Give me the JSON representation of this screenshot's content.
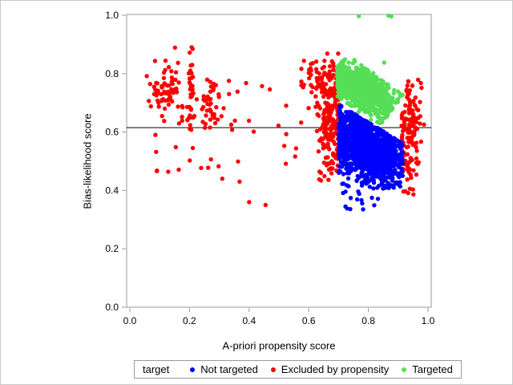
{
  "figure": {
    "background": "#ffffff",
    "outer_border_color": "#c9c9c9"
  },
  "chart_data": {
    "type": "scatter",
    "title": "",
    "xlabel": "A-priori propensity score",
    "ylabel": "Bias-likelihood score",
    "xlim": [
      0.0,
      1.0
    ],
    "ylim": [
      0.0,
      1.0
    ],
    "xticks": [
      "0.0",
      "0.2",
      "0.4",
      "0.6",
      "0.8",
      "1.0"
    ],
    "yticks": [
      "0.0",
      "0.2",
      "0.4",
      "0.6",
      "0.8",
      "1.0"
    ],
    "grid": false,
    "frame_color": "#9a9a9a",
    "text_color": "#000000",
    "marker": {
      "shape": "circle",
      "radius_px": 2.7
    },
    "reference_line": {
      "axis": "y",
      "value": 0.615,
      "color": "#000000"
    },
    "legend": {
      "title": "target",
      "position": "bottom",
      "items": [
        {
          "label": "Not targeted",
          "color": "#0000ff"
        },
        {
          "label": "Excluded by propensity",
          "color": "#ff0000"
        },
        {
          "label": "Targeted",
          "color": "#57de57"
        }
      ]
    },
    "render_order": [
      1,
      0,
      2
    ],
    "series": [
      {
        "name": "Not targeted",
        "color": "#0000ff",
        "clusters": [
          {
            "kind": "gauss",
            "n": 760,
            "cx": 0.752,
            "cy": 0.572,
            "sx": 0.034,
            "sy": 0.06,
            "xmin": 0.7,
            "xmax": 0.915,
            "ymin": 0.415,
            "ymax": 0.7,
            "ymaxline": [
              1.129,
              -0.62
            ]
          },
          {
            "kind": "gauss",
            "n": 640,
            "cx": 0.838,
            "cy": 0.52,
            "sx": 0.04,
            "sy": 0.05,
            "xmin": 0.7,
            "xmax": 0.915,
            "ymin": 0.405,
            "ymax": 0.7,
            "ymaxline": [
              1.129,
              -0.62
            ]
          },
          {
            "kind": "uniform",
            "n": 16,
            "xmin": 0.715,
            "xmax": 0.84,
            "ymin": 0.325,
            "ymax": 0.415
          }
        ]
      },
      {
        "name": "Excluded by propensity",
        "color": "#ff0000",
        "clusters": [
          {
            "kind": "gauss",
            "n": 75,
            "cx": 0.125,
            "cy": 0.735,
            "sx": 0.032,
            "sy": 0.052,
            "xmin": 0.05,
            "xmax": 0.2,
            "ymin": 0.57,
            "ymax": 0.905
          },
          {
            "kind": "gauss",
            "n": 38,
            "cx": 0.205,
            "cy": 0.72,
            "sx": 0.006,
            "sy": 0.08,
            "xmin": 0.19,
            "xmax": 0.22,
            "ymin": 0.54,
            "ymax": 0.9
          },
          {
            "kind": "gauss",
            "n": 42,
            "cx": 0.265,
            "cy": 0.7,
            "sx": 0.022,
            "sy": 0.062,
            "xmin": 0.215,
            "xmax": 0.335,
            "ymin": 0.5,
            "ymax": 0.88
          },
          {
            "kind": "uniform",
            "n": 9,
            "xmin": 0.08,
            "xmax": 0.33,
            "ymin": 0.44,
            "ymax": 0.56
          },
          {
            "kind": "uniform",
            "n": 13,
            "xmin": 0.3,
            "xmax": 0.5,
            "ymin": 0.6,
            "ymax": 0.8
          },
          {
            "kind": "uniform",
            "n": 9,
            "xmin": 0.5,
            "xmax": 0.6,
            "ymin": 0.46,
            "ymax": 0.78
          },
          {
            "kind": "points",
            "pts": [
              [
                0.164,
                0.471
              ],
              [
                0.239,
                0.477
              ],
              [
                0.363,
                0.499
              ],
              [
                0.368,
                0.43
              ],
              [
                0.4,
                0.36
              ],
              [
                0.31,
                0.44
              ],
              [
                0.455,
                0.35
              ]
            ]
          },
          {
            "kind": "gauss",
            "n": 215,
            "cx": 0.672,
            "cy": 0.635,
            "sx": 0.023,
            "sy": 0.092,
            "xmin": 0.578,
            "xmax": 0.704,
            "ymin": 0.425,
            "ymax": 0.875
          },
          {
            "kind": "gauss",
            "n": 55,
            "cx": 0.638,
            "cy": 0.775,
            "sx": 0.03,
            "sy": 0.038,
            "xmin": 0.575,
            "xmax": 0.704,
            "ymin": 0.6,
            "ymax": 0.875
          },
          {
            "kind": "gauss",
            "n": 155,
            "cx": 0.938,
            "cy": 0.6,
            "sx": 0.018,
            "sy": 0.088,
            "xmin": 0.906,
            "xmax": 0.992,
            "ymin": 0.385,
            "ymax": 0.8
          }
        ]
      },
      {
        "name": "Targeted",
        "color": "#57de57",
        "clusters": [
          {
            "kind": "diag",
            "n": 860,
            "cx": 0.782,
            "cy": 0.742,
            "dx": 0.8,
            "dy": -0.6,
            "asd": 0.062,
            "amax": 0.118,
            "psd": 0.031,
            "pmax": 0.068,
            "xmin": 0.695,
            "xmax": 0.915,
            "ymin": 0.572,
            "ymax": 0.882,
            "yminline": [
              1.124,
              -0.62,
              0.572
            ]
          },
          {
            "kind": "points",
            "pts": [
              [
                0.768,
                0.997
              ],
              [
                0.867,
                0.999
              ],
              [
                0.877,
                0.996
              ],
              [
                0.7,
                0.796
              ],
              [
                0.853,
                0.838
              ]
            ]
          }
        ]
      }
    ]
  }
}
